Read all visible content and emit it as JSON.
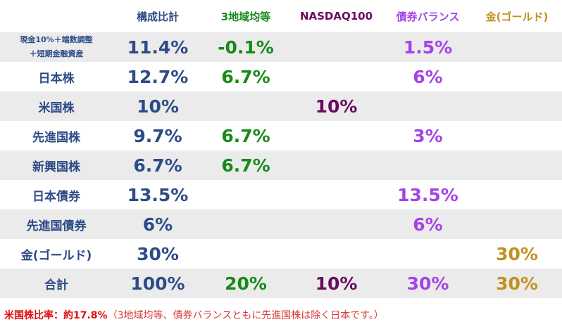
{
  "table": {
    "header": [
      "構成比計",
      "3地域均等",
      "NASDAQ100",
      "債券バランス",
      "金(ゴールド)"
    ],
    "rows": [
      {
        "label": [
          "現金10%＋端数調整",
          "＋短期金融資産"
        ],
        "cells": [
          "11.4%",
          "-0.1%",
          null,
          "1.5%",
          null
        ]
      },
      {
        "label": "日本株",
        "cells": [
          "12.7%",
          "6.7%",
          null,
          "6%",
          null
        ]
      },
      {
        "label": "米国株",
        "cells": [
          "10%",
          null,
          "10%",
          null,
          null
        ]
      },
      {
        "label": "先進国株",
        "cells": [
          "9.7%",
          "6.7%",
          null,
          "3%",
          null
        ]
      },
      {
        "label": "新興国株",
        "cells": [
          "6.7%",
          "6.7%",
          null,
          null,
          null
        ]
      },
      {
        "label": "日本債券",
        "cells": [
          "13.5%",
          null,
          null,
          "13.5%",
          null
        ]
      },
      {
        "label": "先進国債券",
        "cells": [
          "6%",
          null,
          null,
          "6%",
          null
        ]
      },
      {
        "label": "金(ゴールド)",
        "cells": [
          "30%",
          null,
          null,
          null,
          "30%"
        ]
      },
      {
        "label": "合計",
        "cells": [
          "100%",
          "20%",
          "10%",
          "30%",
          "30%"
        ]
      }
    ]
  },
  "footnote": {
    "emphasis": "米国株比率：約17.8%",
    "text": "（3地域均等、債券バランスともに先進国株は除く日本です。）"
  }
}
